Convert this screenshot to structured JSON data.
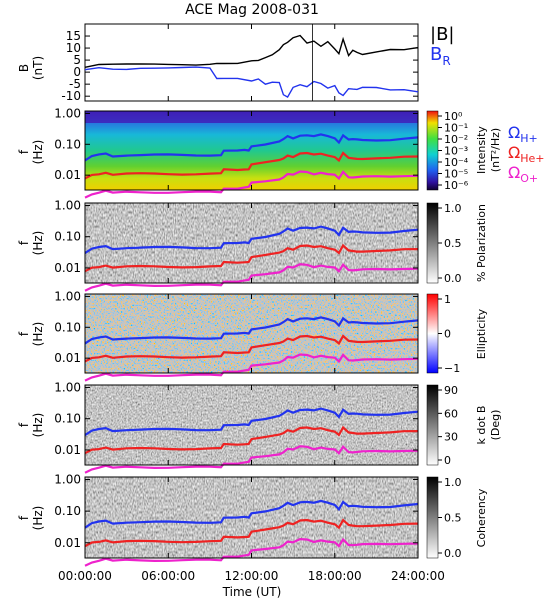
{
  "title": "ACE Mag 2008-031",
  "time_axis": {
    "label": "Time (UT)",
    "ticks": [
      "00:00:00",
      "06:00:00",
      "12:00:00",
      "18:00:00",
      "24:00:00"
    ],
    "tick_hours": [
      0,
      6,
      12,
      18,
      24
    ],
    "xlim": [
      0,
      24
    ]
  },
  "gyro_legend": [
    {
      "label": "Ω",
      "sub": "H+",
      "color": "#2233ee"
    },
    {
      "label": "Ω",
      "sub": "He+",
      "color": "#ee2222"
    },
    {
      "label": "Ω",
      "sub": "O+",
      "color": "#ee22cc"
    }
  ],
  "field_legend": [
    {
      "label": "|B|",
      "color": "#000000"
    },
    {
      "label": "B",
      "sub": "R",
      "color": "#2233ee"
    }
  ],
  "panels": [
    {
      "id": "bfield",
      "ylabel": "B",
      "yunit": "(nT)"
    },
    {
      "id": "intensity",
      "ylabel": "f",
      "yunit": "(Hz)",
      "cbar_label": "Intensity",
      "cbar_unit": "(nT²/Hz)",
      "cbar_ticks": [
        "10⁰",
        "10⁻¹",
        "10⁻²",
        "10⁻³",
        "10⁻⁴",
        "10⁻⁵",
        "10⁻⁶"
      ]
    },
    {
      "id": "polarization",
      "ylabel": "f",
      "yunit": "(Hz)",
      "cbar_label": "% Polarization",
      "cbar_ticks": [
        "1.0",
        "0.5",
        "0.0"
      ]
    },
    {
      "id": "ellipticity",
      "ylabel": "f",
      "yunit": "(Hz)",
      "cbar_label": "Ellipticity",
      "cbar_ticks": [
        "1",
        "0",
        "−1"
      ]
    },
    {
      "id": "kdotb",
      "ylabel": "f",
      "yunit": "(Hz)",
      "cbar_label": "k dot B",
      "cbar_unit": "(Deg)",
      "cbar_ticks": [
        "90",
        "60",
        "30",
        "0"
      ]
    },
    {
      "id": "coherency",
      "ylabel": "f",
      "yunit": "(Hz)",
      "cbar_label": "Coherency",
      "cbar_ticks": [
        "1.0",
        "0.5",
        "0.0"
      ]
    }
  ],
  "chart_data": [
    {
      "type": "line",
      "panel": "bfield",
      "ylim": [
        -12,
        20
      ],
      "yticks": [
        15,
        10,
        5,
        0,
        -5,
        -10
      ],
      "x": [
        0,
        1,
        2,
        3,
        4,
        5,
        6,
        7,
        8,
        9,
        9.5,
        10,
        11,
        12,
        12.5,
        13,
        13.5,
        14,
        14.3,
        14.6,
        15,
        15.5,
        16,
        16.5,
        17,
        17.5,
        18,
        18.3,
        18.6,
        19,
        19.3,
        19.6,
        20,
        21,
        22,
        23,
        24
      ],
      "series": [
        {
          "name": "|B|",
          "values": [
            2,
            3,
            3,
            3,
            3,
            3,
            3,
            3,
            3,
            3.5,
            4,
            4,
            4,
            5,
            5,
            6,
            7,
            9,
            11,
            12,
            14,
            15,
            12,
            13,
            11,
            13,
            10,
            8,
            14,
            7,
            9,
            8,
            7,
            8,
            9,
            9,
            10
          ]
        },
        {
          "name": "B_R",
          "values": [
            1,
            2,
            1.5,
            1.5,
            2,
            2,
            2,
            2,
            2,
            1.5,
            -3,
            -3,
            -3,
            -4,
            -3,
            -5,
            -4,
            -4,
            -9,
            -10,
            -6,
            -5,
            -6,
            -4,
            -5,
            -7,
            -6,
            -9,
            -10,
            -7,
            -7,
            -7,
            -6,
            -6,
            -7,
            -7,
            -8
          ]
        }
      ]
    },
    {
      "type": "heatmap",
      "panels": [
        "intensity",
        "polarization",
        "ellipticity",
        "kdotb",
        "coherency"
      ],
      "yscale": "log",
      "ylim": [
        0.0033,
        1.2
      ],
      "yticks": [
        1.0,
        0.1,
        0.01
      ],
      "ytick_labels": [
        "1.00",
        "0.10",
        "0.01"
      ],
      "overlay_lines": {
        "x": [
          0,
          0.5,
          1,
          1.5,
          2,
          3,
          4,
          5,
          6,
          7,
          8,
          9,
          9.8,
          10,
          11,
          11.5,
          11.8,
          12,
          13,
          14,
          14.3,
          14.6,
          15,
          15.5,
          16,
          16.5,
          17,
          17.5,
          18,
          18.3,
          18.6,
          19,
          19.3,
          19.6,
          20,
          21,
          22,
          23,
          24
        ],
        "series": [
          {
            "name": "Ω_H+",
            "values": [
              0.03,
              0.04,
              0.045,
              0.05,
              0.042,
              0.045,
              0.045,
              0.045,
              0.045,
              0.045,
              0.045,
              0.045,
              0.045,
              0.06,
              0.06,
              0.065,
              0.065,
              0.09,
              0.1,
              0.12,
              0.14,
              0.18,
              0.16,
              0.2,
              0.2,
              0.18,
              0.2,
              0.18,
              0.16,
              0.12,
              0.2,
              0.14,
              0.14,
              0.14,
              0.14,
              0.14,
              0.14,
              0.15,
              0.16
            ]
          },
          {
            "name": "Ω_He+",
            "values": [
              0.0075,
              0.01,
              0.011,
              0.0125,
              0.0105,
              0.011,
              0.011,
              0.011,
              0.011,
              0.011,
              0.011,
              0.011,
              0.011,
              0.015,
              0.015,
              0.016,
              0.016,
              0.022,
              0.025,
              0.03,
              0.035,
              0.045,
              0.04,
              0.05,
              0.05,
              0.045,
              0.05,
              0.045,
              0.04,
              0.03,
              0.05,
              0.035,
              0.035,
              0.035,
              0.035,
              0.035,
              0.035,
              0.038,
              0.04
            ]
          },
          {
            "name": "Ω_O+",
            "values": [
              0.0019,
              0.0025,
              0.0028,
              0.0031,
              0.0026,
              0.0028,
              0.0028,
              0.0028,
              0.0028,
              0.0028,
              0.0028,
              0.0028,
              0.0028,
              0.0038,
              0.0038,
              0.004,
              0.004,
              0.0055,
              0.0063,
              0.0075,
              0.0088,
              0.011,
              0.01,
              0.0125,
              0.0125,
              0.011,
              0.0125,
              0.011,
              0.01,
              0.0075,
              0.0125,
              0.0088,
              0.0088,
              0.0088,
              0.0088,
              0.0088,
              0.0088,
              0.0095,
              0.01
            ]
          }
        ]
      }
    }
  ],
  "colors": {
    "H+": "#2233ee",
    "He+": "#ee2222",
    "O+": "#ee22cc",
    "B_R": "#2233ee",
    "B_mag": "#000000"
  }
}
